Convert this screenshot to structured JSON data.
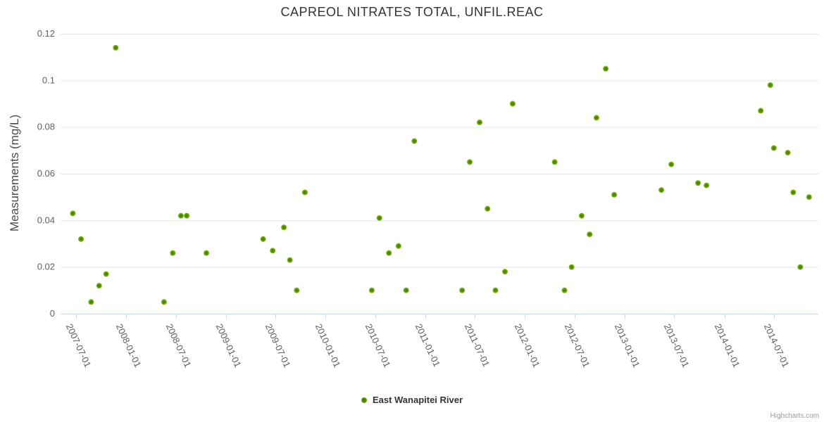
{
  "credits": "Highcharts.com",
  "colors": {
    "title": "#333333",
    "axis_label": "#606060",
    "axis_line": "#ccd6eb",
    "grid": "#e6e6e6",
    "series_edge": "#82c00e",
    "series_mid": "#5f950a",
    "series_center": "#3f6d08",
    "legend_text": "#333333",
    "credits_text": "#999999"
  },
  "chart_data": {
    "type": "scatter",
    "title": "CAPREOL NITRATES TOTAL, UNFIL.REAC",
    "xlabel": "",
    "ylabel": "Measurements (mg/L)",
    "ylim": [
      0,
      0.12
    ],
    "y_tick_labels": [
      "0",
      "0.02",
      "0.04",
      "0.06",
      "0.08",
      "0.1",
      "0.12"
    ],
    "x_tick_labels": [
      "2007-07-01",
      "2008-01-01",
      "2008-07-01",
      "2009-01-01",
      "2009-07-01",
      "2010-01-01",
      "2010-07-01",
      "2011-01-01",
      "2011-07-01",
      "2012-01-01",
      "2012-07-01",
      "2013-01-01",
      "2013-07-01",
      "2014-01-01",
      "2014-07-01"
    ],
    "x_range": [
      "2007-05-06",
      "2014-12-11"
    ],
    "grid": true,
    "legend_position": "bottom-center",
    "series": [
      {
        "name": "East Wanapitei River",
        "points": [
          {
            "x": "2007-06-20",
            "y": 0.043
          },
          {
            "x": "2007-07-20",
            "y": 0.032
          },
          {
            "x": "2007-08-26",
            "y": 0.005
          },
          {
            "x": "2007-09-24",
            "y": 0.012
          },
          {
            "x": "2007-10-20",
            "y": 0.017
          },
          {
            "x": "2007-11-24",
            "y": 0.114
          },
          {
            "x": "2008-05-19",
            "y": 0.005
          },
          {
            "x": "2008-06-20",
            "y": 0.026
          },
          {
            "x": "2008-07-20",
            "y": 0.042
          },
          {
            "x": "2008-08-10",
            "y": 0.042
          },
          {
            "x": "2008-10-21",
            "y": 0.026
          },
          {
            "x": "2009-05-17",
            "y": 0.032
          },
          {
            "x": "2009-06-21",
            "y": 0.027
          },
          {
            "x": "2009-08-01",
            "y": 0.037
          },
          {
            "x": "2009-08-23",
            "y": 0.023
          },
          {
            "x": "2009-09-17",
            "y": 0.01
          },
          {
            "x": "2009-10-17",
            "y": 0.052
          },
          {
            "x": "2010-06-19",
            "y": 0.01
          },
          {
            "x": "2010-07-17",
            "y": 0.041
          },
          {
            "x": "2010-08-21",
            "y": 0.026
          },
          {
            "x": "2010-09-25",
            "y": 0.029
          },
          {
            "x": "2010-10-23",
            "y": 0.01
          },
          {
            "x": "2010-11-22",
            "y": 0.074
          },
          {
            "x": "2011-05-16",
            "y": 0.01
          },
          {
            "x": "2011-06-13",
            "y": 0.065
          },
          {
            "x": "2011-07-19",
            "y": 0.082
          },
          {
            "x": "2011-08-17",
            "y": 0.045
          },
          {
            "x": "2011-09-15",
            "y": 0.01
          },
          {
            "x": "2011-10-20",
            "y": 0.018
          },
          {
            "x": "2011-11-17",
            "y": 0.09
          },
          {
            "x": "2012-04-19",
            "y": 0.065
          },
          {
            "x": "2012-05-25",
            "y": 0.01
          },
          {
            "x": "2012-06-20",
            "y": 0.02
          },
          {
            "x": "2012-07-27",
            "y": 0.042
          },
          {
            "x": "2012-08-25",
            "y": 0.034
          },
          {
            "x": "2012-09-19",
            "y": 0.084
          },
          {
            "x": "2012-10-23",
            "y": 0.105
          },
          {
            "x": "2012-11-23",
            "y": 0.051
          },
          {
            "x": "2013-05-15",
            "y": 0.053
          },
          {
            "x": "2013-06-20",
            "y": 0.064
          },
          {
            "x": "2013-09-26",
            "y": 0.056
          },
          {
            "x": "2013-10-27",
            "y": 0.055
          },
          {
            "x": "2014-05-14",
            "y": 0.087
          },
          {
            "x": "2014-06-18",
            "y": 0.098
          },
          {
            "x": "2014-07-01",
            "y": 0.071
          },
          {
            "x": "2014-08-21",
            "y": 0.069
          },
          {
            "x": "2014-09-10",
            "y": 0.052
          },
          {
            "x": "2014-10-06",
            "y": 0.02
          },
          {
            "x": "2014-11-07",
            "y": 0.05
          }
        ]
      }
    ]
  }
}
